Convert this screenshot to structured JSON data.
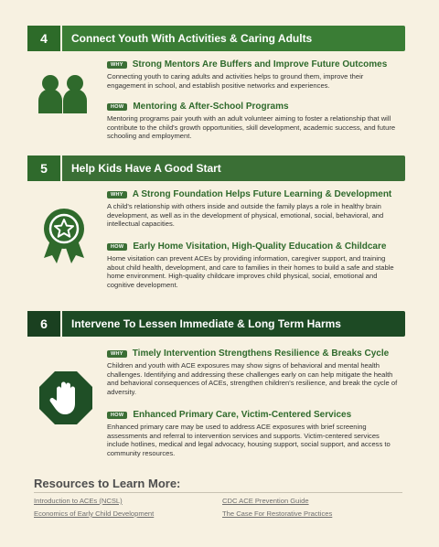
{
  "sections": [
    {
      "number": "4",
      "title": "Connect Youth With Activities & Caring Adults",
      "items": [
        {
          "tag": "WHY",
          "heading": "Strong Mentors Are Buffers and Improve Future Outcomes",
          "text": " Connecting youth to caring adults and activities helps to ground them, improve their engagement in school, and establish positive networks and experiences."
        },
        {
          "tag": "HOW",
          "heading": "Mentoring & After-School Programs",
          "text": "Mentoring programs  pair youth  with  an  adult volunteer  aiming to  foster a  relationship  that  will  contribute  to  the child's growth opportunities, skill development, academic success, and future schooling and employment."
        }
      ]
    },
    {
      "number": "5",
      "title": "Help Kids Have A Good Start",
      "items": [
        {
          "tag": "WHY",
          "heading": "A Strong Foundation Helps Future Learning & Development",
          "text": "A child's relationship with others inside and outside the family plays a role in healthy brain development, as well as in the development of physical, emotional, social, behavioral, and intellectual capacities."
        },
        {
          "tag": "HOW",
          "heading": "Early Home Visitation, High-Quality Education & Childcare",
          "text": "Home visitation can prevent ACEs by providing information, caregiver support, and training about child health, development, and care to families in their homes to build a safe and stable home environment. High-quality childcare improves child physical, social, emotional and cognitive development."
        }
      ]
    },
    {
      "number": "6",
      "title": "Intervene To Lessen Immediate & Long Term Harms",
      "items": [
        {
          "tag": "WHY",
          "heading": "Timely Intervention Strengthens Resilience & Breaks Cycle",
          "text": "Children and youth with ACE exposures may show signs of behavioral and mental health challenges. Identifying and addressing these challenges early on can help mitigate the health and behavioral consequences of ACEs, strengthen children's resilience, and break the cycle of adversity."
        },
        {
          "tag": "HOW",
          "heading": "Enhanced Primary Care, Victim-Centered Services",
          "text": "Enhanced primary care may be used to address ACE exposures with brief screening assessments and referral to intervention services and supports. Victim-centered services include hotlines, medical and legal advocacy, housing support, social support, and access to community resources."
        }
      ]
    }
  ],
  "resources": {
    "title": "Resources to Learn More:",
    "links": [
      "Introduction to ACEs (NCSL)",
      "CDC ACE Prevention Guide",
      "Economics of Early Child Development",
      "The Case For Restorative Practices"
    ]
  },
  "icons": [
    "people-icon",
    "award-ribbon-icon",
    "stop-hand-icon"
  ],
  "colors": {
    "green": "#3a7d35",
    "dark_green": "#1d4a24",
    "background": "#f7f1e1"
  }
}
